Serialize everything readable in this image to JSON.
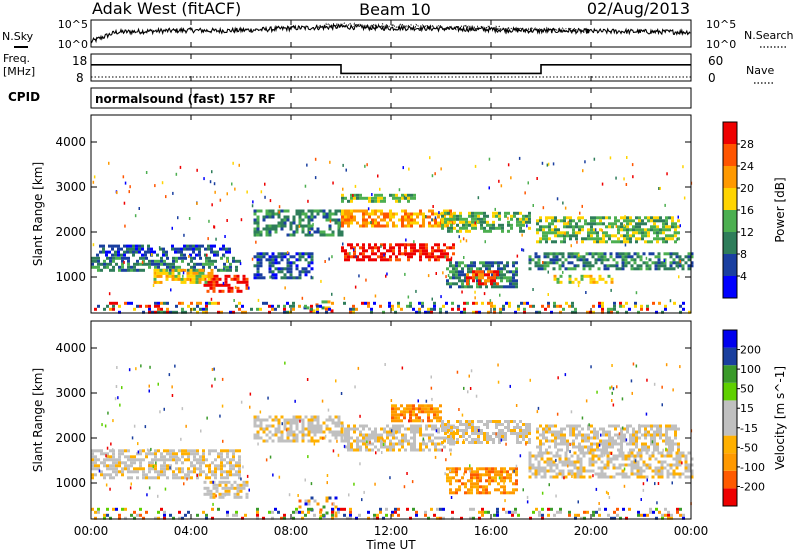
{
  "header": {
    "station": "Adak West (fitACF)",
    "beam": "Beam 10",
    "date": "02/Aug/2013"
  },
  "noise": {
    "left_label": "N.Sky",
    "right_label": "N.Search",
    "ticks_left": [
      "10^5",
      "10^0"
    ],
    "ticks_right": [
      "10^5",
      "10^0"
    ]
  },
  "freq": {
    "label_line1": "Freq.",
    "label_line2": "[MHz]",
    "ticks_left": [
      "18",
      "8"
    ],
    "ticks_right": [
      "60",
      "0"
    ],
    "right_label": "Nave"
  },
  "cpid": {
    "label": "CPID",
    "program": "normalsound (fast) 157 RF"
  },
  "time_axis": {
    "label": "Time UT",
    "ticks": [
      "00:00",
      "04:00",
      "08:00",
      "12:00",
      "16:00",
      "20:00",
      "00:00"
    ]
  },
  "colors": {
    "power": [
      "#0000ff",
      "#1a3fa0",
      "#2e7d5a",
      "#4caf50",
      "#ffd400",
      "#ff9900",
      "#ff5500",
      "#ee0000"
    ],
    "velocity": [
      "#ee0000",
      "#ff5a00",
      "#ff9900",
      "#ffb000",
      "#c0c0c0",
      "#c0c0c0",
      "#5fd000",
      "#3a9a2a",
      "#1a3f9e",
      "#0000ee"
    ]
  },
  "chart_data": [
    {
      "type": "line",
      "panel": "noise",
      "x_unit": "hours UT",
      "ylabel_left": "N.Sky",
      "ylabel_right": "N.Search",
      "series": [
        {
          "name": "N.Sky",
          "x": [
            0,
            1,
            2,
            3,
            4,
            5,
            6,
            7,
            8,
            9,
            10,
            11,
            12,
            13,
            14,
            15,
            16,
            17,
            18,
            19,
            20,
            21,
            22,
            23,
            24
          ],
          "y_level": [
            0.2,
            0.55,
            0.58,
            0.6,
            0.62,
            0.6,
            0.62,
            0.65,
            0.7,
            0.72,
            0.75,
            0.72,
            0.7,
            0.7,
            0.68,
            0.66,
            0.65,
            0.62,
            0.6,
            0.6,
            0.58,
            0.58,
            0.57,
            0.56,
            0.55
          ]
        },
        {
          "name": "N.Search",
          "x": [
            9,
            10,
            11,
            12,
            13,
            14,
            15,
            16,
            17,
            18,
            19,
            20
          ],
          "y_level": [
            0.78,
            0.82,
            0.8,
            0.78,
            0.76,
            0.74,
            0.72,
            0.7,
            0.66,
            0.64,
            0.62,
            0.6
          ]
        }
      ]
    },
    {
      "type": "line",
      "panel": "frequency",
      "x_unit": "hours UT",
      "ylabel": "Freq. [MHz]",
      "ylim": [
        8,
        18
      ],
      "series": [
        {
          "name": "Freq.",
          "x": [
            0,
            10,
            10,
            18,
            18,
            24
          ],
          "y": [
            14,
            14,
            10.8,
            10.8,
            14,
            14
          ]
        },
        {
          "name": "Nave",
          "x": [
            0,
            24
          ],
          "y": [
            9.5,
            9.5
          ]
        }
      ]
    },
    {
      "type": "heatmap",
      "panel": "power",
      "xlabel": "Time UT",
      "ylabel": "Slant Range [km]",
      "xlim": [
        0,
        24
      ],
      "ylim": [
        200,
        4600
      ],
      "yticks": [
        1000,
        2000,
        3000,
        4000
      ],
      "colorbar_label": "Power [dB]",
      "colorbar_ticks": [
        4,
        8,
        12,
        16,
        20,
        24,
        28
      ],
      "regions": [
        {
          "t": [
            0.0,
            6.0
          ],
          "r": [
            1150,
            1450
          ],
          "level": 2
        },
        {
          "t": [
            0.2,
            5.5
          ],
          "r": [
            1480,
            1720
          ],
          "level": 1
        },
        {
          "t": [
            4.5,
            6.2
          ],
          "r": [
            650,
            1050
          ],
          "level": 7
        },
        {
          "t": [
            2.5,
            4.8
          ],
          "r": [
            850,
            1180
          ],
          "level": 4
        },
        {
          "t": [
            6.5,
            8.8
          ],
          "r": [
            950,
            1550
          ],
          "level": 1
        },
        {
          "t": [
            8.5,
            9.7
          ],
          "r": [
            250,
            480
          ],
          "level": 6
        },
        {
          "t": [
            6.5,
            10.0
          ],
          "r": [
            1900,
            2500
          ],
          "level": 2
        },
        {
          "t": [
            10.0,
            14.5
          ],
          "r": [
            2100,
            2500
          ],
          "level": 5
        },
        {
          "t": [
            10.0,
            14.5
          ],
          "r": [
            1380,
            1750
          ],
          "level": 7
        },
        {
          "t": [
            10.0,
            13.0
          ],
          "r": [
            2700,
            2850
          ],
          "level": 3
        },
        {
          "t": [
            14.0,
            17.5
          ],
          "r": [
            2000,
            2450
          ],
          "level": 3
        },
        {
          "t": [
            14.2,
            17.0
          ],
          "r": [
            750,
            1350
          ],
          "level": 2
        },
        {
          "t": [
            15.0,
            16.3
          ],
          "r": [
            850,
            1150
          ],
          "level": 6
        },
        {
          "t": [
            17.5,
            24.0
          ],
          "r": [
            1150,
            1550
          ],
          "level": 2
        },
        {
          "t": [
            17.8,
            23.5
          ],
          "r": [
            1750,
            2350
          ],
          "level": 3
        },
        {
          "t": [
            18.5,
            21.0
          ],
          "r": [
            850,
            1050
          ],
          "level": 4
        },
        {
          "t": [
            0.0,
            24.0
          ],
          "r": [
            200,
            450
          ],
          "level": 1
        }
      ]
    },
    {
      "type": "heatmap",
      "panel": "velocity",
      "xlabel": "Time UT",
      "ylabel": "Slant Range [km]",
      "xlim": [
        0,
        24
      ],
      "ylim": [
        200,
        4600
      ],
      "yticks": [
        1000,
        2000,
        3000,
        4000
      ],
      "colorbar_label": "Velocity [m s^-1]",
      "colorbar_ticks": [
        -200,
        -100,
        -50,
        -15,
        15,
        50,
        100,
        200
      ],
      "regions": [
        {
          "t": [
            0.0,
            6.0
          ],
          "r": [
            1100,
            1750
          ],
          "level": 4
        },
        {
          "t": [
            4.5,
            6.2
          ],
          "r": [
            700,
            1050
          ],
          "level": 4
        },
        {
          "t": [
            6.5,
            10.0
          ],
          "r": [
            1900,
            2500
          ],
          "level": 4
        },
        {
          "t": [
            10.0,
            14.5
          ],
          "r": [
            1700,
            2300
          ],
          "level": 4
        },
        {
          "t": [
            12.0,
            14.0
          ],
          "r": [
            2350,
            2750
          ],
          "level": 2
        },
        {
          "t": [
            14.0,
            17.5
          ],
          "r": [
            1900,
            2400
          ],
          "level": 4
        },
        {
          "t": [
            14.2,
            17.0
          ],
          "r": [
            750,
            1350
          ],
          "level": 2
        },
        {
          "t": [
            17.5,
            24.0
          ],
          "r": [
            1100,
            1700
          ],
          "level": 4
        },
        {
          "t": [
            17.8,
            23.5
          ],
          "r": [
            1750,
            2300
          ],
          "level": 4
        },
        {
          "t": [
            8.3,
            9.8
          ],
          "r": [
            250,
            700
          ],
          "level": 2
        },
        {
          "t": [
            0.0,
            24.0
          ],
          "r": [
            200,
            450
          ],
          "level": 6
        }
      ]
    }
  ]
}
